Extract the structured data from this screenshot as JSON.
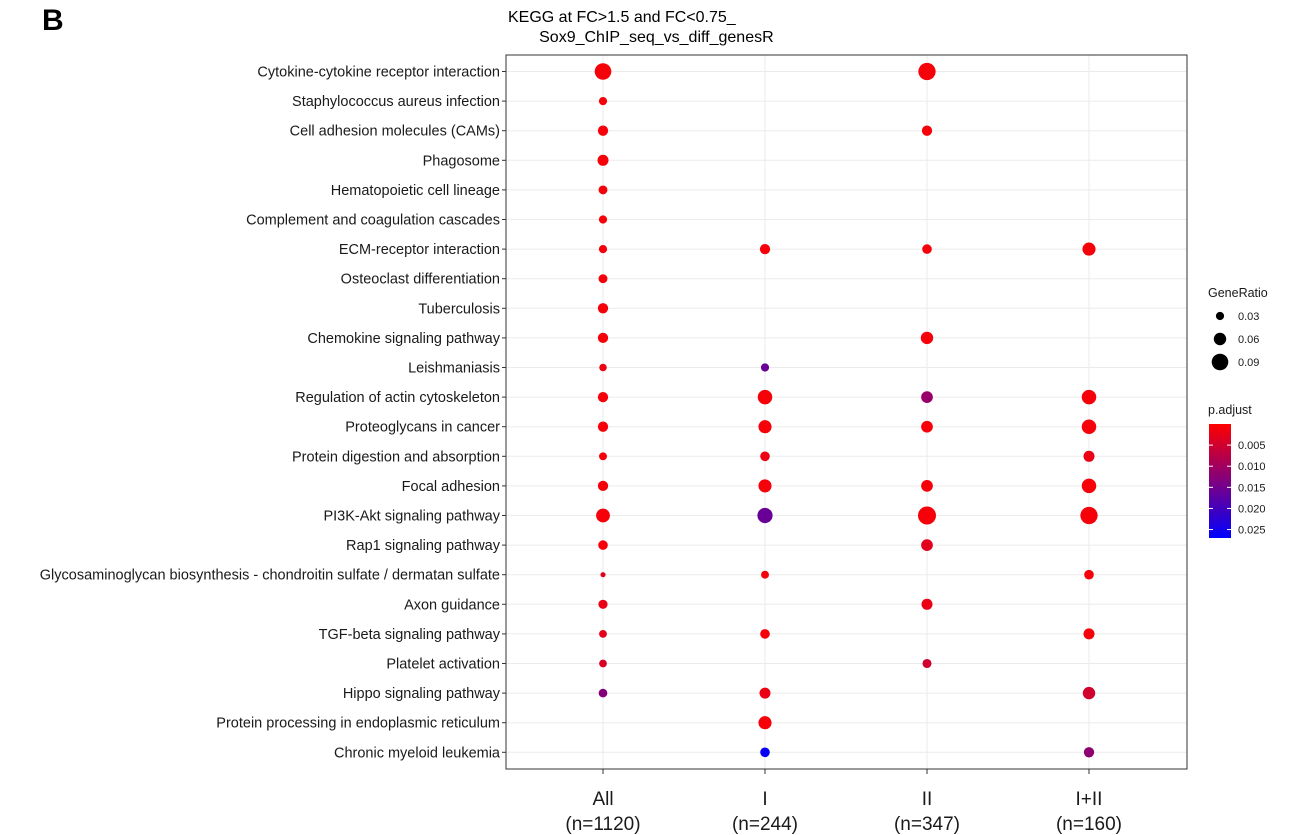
{
  "panel_label": "B",
  "chart_data": {
    "type": "dot",
    "title": "KEGG at FC>1.5 and FC<0.75_\n       Sox9_ChIP_seq_vs_diff_genesR",
    "xlabel": "",
    "ylabel": "",
    "x_categories": [
      {
        "label": "All",
        "n": "(n=1120)"
      },
      {
        "label": "I",
        "n": "(n=244)"
      },
      {
        "label": "II",
        "n": "(n=347)"
      },
      {
        "label": "I+II",
        "n": "(n=160)"
      }
    ],
    "y_categories": [
      "Cytokine-cytokine receptor interaction",
      "Staphylococcus aureus infection",
      "Cell adhesion molecules (CAMs)",
      "Phagosome",
      "Hematopoietic cell lineage",
      "Complement and coagulation cascades",
      "ECM-receptor interaction",
      "Osteoclast differentiation",
      "Tuberculosis",
      "Chemokine signaling pathway",
      "Leishmaniasis",
      "Regulation of actin cytoskeleton",
      "Proteoglycans in cancer",
      "Protein digestion and absorption",
      "Focal adhesion",
      "PI3K-Akt signaling pathway",
      "Rap1 signaling pathway",
      "Glycosaminoglycan biosynthesis - chondroitin sulfate / dermatan sulfate",
      "Axon guidance",
      "TGF-beta signaling pathway",
      "Platelet activation",
      "Hippo signaling pathway",
      "Protein processing in endoplasmic reticulum",
      "Chronic myeloid leukemia"
    ],
    "points": [
      {
        "x": "All",
        "y": "Cytokine-cytokine receptor interaction",
        "gene_ratio": 0.09,
        "p_adjust": 0.001
      },
      {
        "x": "All",
        "y": "Staphylococcus aureus infection",
        "gene_ratio": 0.03,
        "p_adjust": 0.001
      },
      {
        "x": "All",
        "y": "Cell adhesion molecules (CAMs)",
        "gene_ratio": 0.045,
        "p_adjust": 0.001
      },
      {
        "x": "All",
        "y": "Phagosome",
        "gene_ratio": 0.05,
        "p_adjust": 0.001
      },
      {
        "x": "All",
        "y": "Hematopoietic cell lineage",
        "gene_ratio": 0.035,
        "p_adjust": 0.001
      },
      {
        "x": "All",
        "y": "Complement and coagulation cascades",
        "gene_ratio": 0.03,
        "p_adjust": 0.001
      },
      {
        "x": "All",
        "y": "ECM-receptor interaction",
        "gene_ratio": 0.03,
        "p_adjust": 0.001
      },
      {
        "x": "All",
        "y": "Osteoclast differentiation",
        "gene_ratio": 0.035,
        "p_adjust": 0.001
      },
      {
        "x": "All",
        "y": "Tuberculosis",
        "gene_ratio": 0.045,
        "p_adjust": 0.001
      },
      {
        "x": "All",
        "y": "Chemokine signaling pathway",
        "gene_ratio": 0.045,
        "p_adjust": 0.001
      },
      {
        "x": "All",
        "y": "Leishmaniasis",
        "gene_ratio": 0.025,
        "p_adjust": 0.002
      },
      {
        "x": "All",
        "y": "Regulation of actin cytoskeleton",
        "gene_ratio": 0.045,
        "p_adjust": 0.001
      },
      {
        "x": "All",
        "y": "Proteoglycans in cancer",
        "gene_ratio": 0.045,
        "p_adjust": 0.001
      },
      {
        "x": "All",
        "y": "Protein digestion and absorption",
        "gene_ratio": 0.028,
        "p_adjust": 0.001
      },
      {
        "x": "All",
        "y": "Focal adhesion",
        "gene_ratio": 0.045,
        "p_adjust": 0.001
      },
      {
        "x": "All",
        "y": "PI3K-Akt signaling pathway",
        "gene_ratio": 0.07,
        "p_adjust": 0.001
      },
      {
        "x": "All",
        "y": "Rap1 signaling pathway",
        "gene_ratio": 0.04,
        "p_adjust": 0.001
      },
      {
        "x": "All",
        "y": "Glycosaminoglycan biosynthesis - chondroitin sulfate / dermatan sulfate",
        "gene_ratio": 0.008,
        "p_adjust": 0.003
      },
      {
        "x": "All",
        "y": "Axon guidance",
        "gene_ratio": 0.037,
        "p_adjust": 0.002
      },
      {
        "x": "All",
        "y": "TGF-beta signaling pathway",
        "gene_ratio": 0.027,
        "p_adjust": 0.003
      },
      {
        "x": "All",
        "y": "Platelet activation",
        "gene_ratio": 0.027,
        "p_adjust": 0.004
      },
      {
        "x": "All",
        "y": "Hippo signaling pathway",
        "gene_ratio": 0.033,
        "p_adjust": 0.013
      },
      {
        "x": "I",
        "y": "ECM-receptor interaction",
        "gene_ratio": 0.045,
        "p_adjust": 0.001
      },
      {
        "x": "I",
        "y": "Leishmaniasis",
        "gene_ratio": 0.03,
        "p_adjust": 0.016
      },
      {
        "x": "I",
        "y": "Regulation of actin cytoskeleton",
        "gene_ratio": 0.075,
        "p_adjust": 0.001
      },
      {
        "x": "I",
        "y": "Proteoglycans in cancer",
        "gene_ratio": 0.065,
        "p_adjust": 0.001
      },
      {
        "x": "I",
        "y": "Protein digestion and absorption",
        "gene_ratio": 0.04,
        "p_adjust": 0.002
      },
      {
        "x": "I",
        "y": "Focal adhesion",
        "gene_ratio": 0.065,
        "p_adjust": 0.001
      },
      {
        "x": "I",
        "y": "PI3K-Akt signaling pathway",
        "gene_ratio": 0.08,
        "p_adjust": 0.016
      },
      {
        "x": "I",
        "y": "Glycosaminoglycan biosynthesis - chondroitin sulfate / dermatan sulfate",
        "gene_ratio": 0.028,
        "p_adjust": 0.001
      },
      {
        "x": "I",
        "y": "TGF-beta signaling pathway",
        "gene_ratio": 0.04,
        "p_adjust": 0.001
      },
      {
        "x": "I",
        "y": "Hippo signaling pathway",
        "gene_ratio": 0.05,
        "p_adjust": 0.002
      },
      {
        "x": "I",
        "y": "Protein processing in endoplasmic reticulum",
        "gene_ratio": 0.065,
        "p_adjust": 0.001
      },
      {
        "x": "I",
        "y": "Chronic myeloid leukemia",
        "gene_ratio": 0.04,
        "p_adjust": 0.026
      },
      {
        "x": "II",
        "y": "Cytokine-cytokine receptor interaction",
        "gene_ratio": 0.095,
        "p_adjust": 0.001
      },
      {
        "x": "II",
        "y": "Cell adhesion molecules (CAMs)",
        "gene_ratio": 0.045,
        "p_adjust": 0.001
      },
      {
        "x": "II",
        "y": "ECM-receptor interaction",
        "gene_ratio": 0.04,
        "p_adjust": 0.001
      },
      {
        "x": "II",
        "y": "Chemokine signaling pathway",
        "gene_ratio": 0.06,
        "p_adjust": 0.001
      },
      {
        "x": "II",
        "y": "Regulation of actin cytoskeleton",
        "gene_ratio": 0.055,
        "p_adjust": 0.011
      },
      {
        "x": "II",
        "y": "Proteoglycans in cancer",
        "gene_ratio": 0.055,
        "p_adjust": 0.001
      },
      {
        "x": "II",
        "y": "Focal adhesion",
        "gene_ratio": 0.055,
        "p_adjust": 0.001
      },
      {
        "x": "II",
        "y": "PI3K-Akt signaling pathway",
        "gene_ratio": 0.1,
        "p_adjust": 0.001
      },
      {
        "x": "II",
        "y": "Rap1 signaling pathway",
        "gene_ratio": 0.055,
        "p_adjust": 0.003
      },
      {
        "x": "II",
        "y": "Axon guidance",
        "gene_ratio": 0.05,
        "p_adjust": 0.002
      },
      {
        "x": "II",
        "y": "Platelet activation",
        "gene_ratio": 0.036,
        "p_adjust": 0.005
      },
      {
        "x": "I+II",
        "y": "ECM-receptor interaction",
        "gene_ratio": 0.065,
        "p_adjust": 0.001
      },
      {
        "x": "I+II",
        "y": "Regulation of actin cytoskeleton",
        "gene_ratio": 0.075,
        "p_adjust": 0.001
      },
      {
        "x": "I+II",
        "y": "Proteoglycans in cancer",
        "gene_ratio": 0.075,
        "p_adjust": 0.001
      },
      {
        "x": "I+II",
        "y": "Protein digestion and absorption",
        "gene_ratio": 0.05,
        "p_adjust": 0.002
      },
      {
        "x": "I+II",
        "y": "Focal adhesion",
        "gene_ratio": 0.075,
        "p_adjust": 0.001
      },
      {
        "x": "I+II",
        "y": "PI3K-Akt signaling pathway",
        "gene_ratio": 0.095,
        "p_adjust": 0.001
      },
      {
        "x": "I+II",
        "y": "Glycosaminoglycan biosynthesis - chondroitin sulfate / dermatan sulfate",
        "gene_ratio": 0.04,
        "p_adjust": 0.001
      },
      {
        "x": "I+II",
        "y": "TGF-beta signaling pathway",
        "gene_ratio": 0.05,
        "p_adjust": 0.001
      },
      {
        "x": "I+II",
        "y": "Hippo signaling pathway",
        "gene_ratio": 0.06,
        "p_adjust": 0.005
      },
      {
        "x": "I+II",
        "y": "Chronic myeloid leukemia",
        "gene_ratio": 0.045,
        "p_adjust": 0.012
      }
    ],
    "size_legend": {
      "title": "GeneRatio",
      "values": [
        0.03,
        0.06,
        0.09
      ],
      "labels": [
        "0.03",
        "0.06",
        "0.09"
      ]
    },
    "color_legend": {
      "title": "p.adjust",
      "range": [
        0.0,
        0.027
      ],
      "ticks": [
        0.005,
        0.01,
        0.015,
        0.02,
        0.025
      ],
      "tick_labels": [
        "0.005",
        "0.010",
        "0.015",
        "0.020",
        "0.025"
      ],
      "low_color": "#ff0000",
      "high_color": "#0000ff"
    },
    "grid": true,
    "legend_position": "right"
  }
}
